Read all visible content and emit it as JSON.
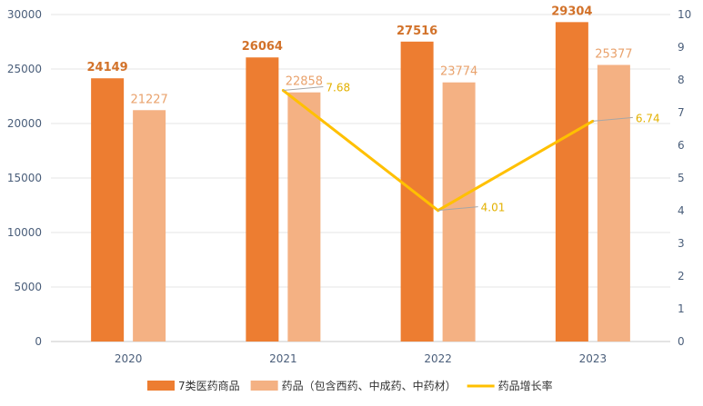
{
  "chart_data": {
    "type": "bar",
    "categories": [
      "2020",
      "2021",
      "2022",
      "2023"
    ],
    "series": [
      {
        "name": "7类医药商品",
        "type": "bar",
        "axis": "left",
        "color": "#ed7d31",
        "values": [
          24149,
          26064,
          27516,
          29304
        ]
      },
      {
        "name": "药品（包含西药、中成药、中药材）",
        "type": "bar",
        "axis": "left",
        "color": "#f4b183",
        "values": [
          21227,
          22858,
          23774,
          25377
        ]
      },
      {
        "name": "药品增长率",
        "type": "line",
        "axis": "right",
        "color": "#ffc000",
        "values": [
          null,
          7.68,
          4.01,
          6.74
        ]
      }
    ],
    "y_left": {
      "min": 0,
      "max": 30000,
      "ticks": [
        0,
        5000,
        10000,
        15000,
        20000,
        25000,
        30000
      ]
    },
    "y_right": {
      "min": 0,
      "max": 10,
      "ticks": [
        0,
        1,
        2,
        3,
        4,
        5,
        6,
        7,
        8,
        9,
        10
      ]
    },
    "grid": true,
    "legend_position": "bottom"
  }
}
